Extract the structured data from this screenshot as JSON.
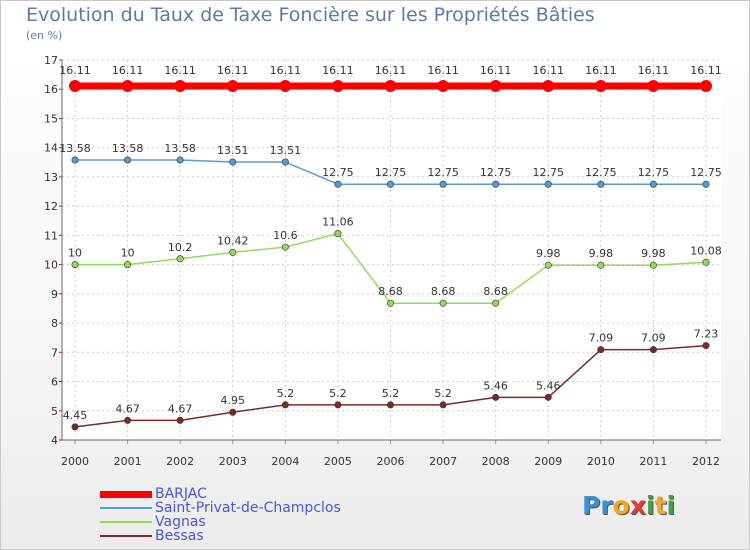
{
  "chart_data": {
    "type": "line",
    "title": "Evolution du Taux de Taxe Foncière sur les Propriétés Bâties",
    "unit_label": "(en %)",
    "x": [
      "2000",
      "2001",
      "2002",
      "2003",
      "2004",
      "2005",
      "2006",
      "2007",
      "2008",
      "2009",
      "2010",
      "2011",
      "2012"
    ],
    "ylim": [
      4,
      17
    ],
    "yticks": [
      4,
      5,
      6,
      7,
      8,
      9,
      10,
      11,
      12,
      13,
      14,
      15,
      16,
      17
    ],
    "grid": true,
    "legend_position": "bottom-left",
    "series": [
      {
        "name": "BARJAC",
        "color": "#ff0000",
        "values": [
          16.11,
          16.11,
          16.11,
          16.11,
          16.11,
          16.11,
          16.11,
          16.11,
          16.11,
          16.11,
          16.11,
          16.11,
          16.11
        ],
        "labels": [
          "16.11",
          "16.11",
          "16.11",
          "16.11",
          "16.11",
          "16.11",
          "16.11",
          "16.11",
          "16.11",
          "16.11",
          "16.11",
          "16.11",
          "16.11"
        ]
      },
      {
        "name": "Saint-Privat-de-Champclos",
        "color": "#5b9bd5",
        "values": [
          13.58,
          13.58,
          13.58,
          13.51,
          13.51,
          12.75,
          12.75,
          12.75,
          12.75,
          12.75,
          12.75,
          12.75,
          12.75
        ],
        "labels": [
          "13.58",
          "13.58",
          "13.58",
          "13.51",
          "13.51",
          "12.75",
          "12.75",
          "12.75",
          "12.75",
          "12.75",
          "12.75",
          "12.75",
          "12.75"
        ]
      },
      {
        "name": "Vagnas",
        "color": "#8fdc5a",
        "values": [
          10,
          10,
          10.2,
          10.42,
          10.6,
          11.06,
          8.68,
          8.68,
          8.68,
          9.98,
          9.98,
          9.98,
          10.08
        ],
        "labels": [
          "10",
          "10",
          "10.2",
          "10.42",
          "10.6",
          "11.06",
          "8.68",
          "8.68",
          "8.68",
          "9.98",
          "9.98",
          "9.98",
          "10.08"
        ]
      },
      {
        "name": "Bessas",
        "color": "#7a2a2a",
        "values": [
          4.45,
          4.67,
          4.67,
          4.95,
          5.2,
          5.2,
          5.2,
          5.2,
          5.46,
          5.46,
          7.09,
          7.09,
          7.23
        ],
        "labels": [
          "4.45",
          "4.67",
          "4.67",
          "4.95",
          "5.2",
          "5.2",
          "5.2",
          "5.2",
          "5.46",
          "5.46",
          "7.09",
          "7.09",
          "7.23"
        ]
      }
    ]
  },
  "logo": {
    "letters": [
      {
        "ch": "P",
        "color": "#3b8fd6"
      },
      {
        "ch": "r",
        "color": "#3b8fd6"
      },
      {
        "ch": "o",
        "color": "#f5a623"
      },
      {
        "ch": "x",
        "color": "#e53935"
      },
      {
        "ch": "i",
        "color": "#43a047"
      },
      {
        "ch": "t",
        "color": "#f5a623"
      },
      {
        "ch": "i",
        "color": "#43a047"
      }
    ]
  }
}
